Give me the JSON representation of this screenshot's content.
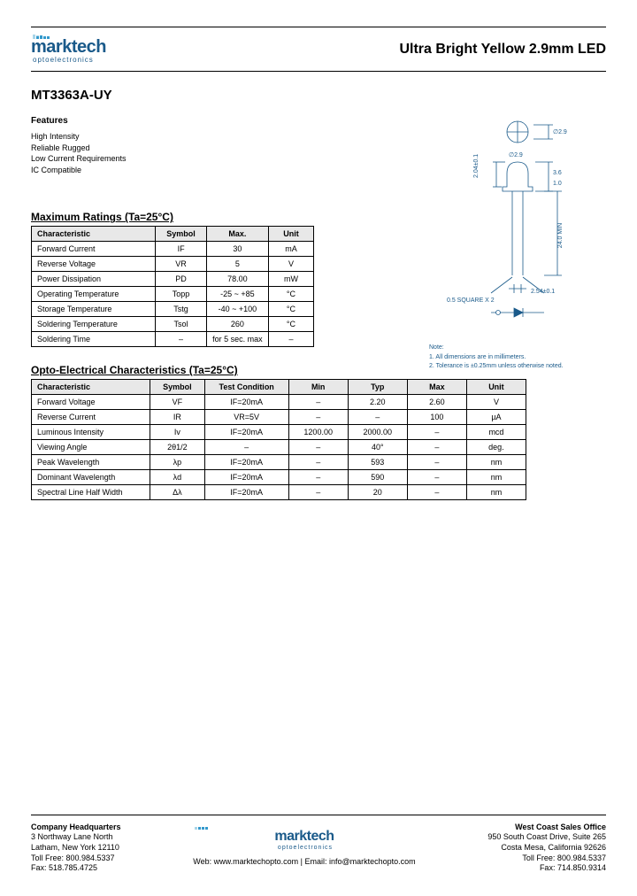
{
  "logo": {
    "name": "marktech",
    "sub": "optoelectronics"
  },
  "product_title": "Ultra Bright Yellow 2.9mm LED",
  "part_number": "MT3363A-UY",
  "features": {
    "heading": "Features",
    "items": [
      "High Intensity",
      "Reliable Rugged",
      "Low Current Requirements",
      "IC Compatible"
    ]
  },
  "ratings": {
    "heading": "Maximum Ratings (Ta=25°C)",
    "columns": [
      "Characteristic",
      "Symbol",
      "Max.",
      "Unit"
    ],
    "col_widths": [
      "44%",
      "18%",
      "22%",
      "16%"
    ],
    "header_bg": "#e8e8e8",
    "rows": [
      [
        "Forward Current",
        "IF",
        "30",
        "mA"
      ],
      [
        "Reverse Voltage",
        "VR",
        "5",
        "V"
      ],
      [
        "Power Dissipation",
        "PD",
        "78.00",
        "mW"
      ],
      [
        "Operating Temperature",
        "Topp",
        "-25 ~ +85",
        "°C"
      ],
      [
        "Storage Temperature",
        "Tstg",
        "-40 ~ +100",
        "°C"
      ],
      [
        "Soldering Temperature",
        "Tsol",
        "260",
        "°C"
      ],
      [
        "Soldering Time",
        "–",
        "for 5 sec. max",
        "–"
      ]
    ]
  },
  "opto": {
    "heading": "Opto-Electrical Characteristics (Ta=25°C)",
    "columns": [
      "Characteristic",
      "Symbol",
      "Test Condition",
      "Min",
      "Typ",
      "Max",
      "Unit"
    ],
    "col_widths": [
      "24%",
      "11%",
      "17%",
      "12%",
      "12%",
      "12%",
      "12%"
    ],
    "header_bg": "#e8e8e8",
    "rows": [
      [
        "Forward Voltage",
        "VF",
        "IF=20mA",
        "–",
        "2.20",
        "2.60",
        "V"
      ],
      [
        "Reverse Current",
        "IR",
        "VR=5V",
        "–",
        "–",
        "100",
        "µA"
      ],
      [
        "Luminous Intensity",
        "Iv",
        "IF=20mA",
        "1200.00",
        "2000.00",
        "–",
        "mcd"
      ],
      [
        "Viewing Angle",
        "2θ1/2",
        "–",
        "–",
        "40°",
        "–",
        "deg."
      ],
      [
        "Peak Wavelength",
        "λp",
        "IF=20mA",
        "–",
        "593",
        "–",
        "nm"
      ],
      [
        "Dominant Wavelength",
        "λd",
        "IF=20mA",
        "–",
        "590",
        "–",
        "nm"
      ],
      [
        "Spectral Line Half Width",
        "Δλ",
        "IF=20mA",
        "–",
        "20",
        "–",
        "nm"
      ]
    ]
  },
  "diagram": {
    "top_dia": "∅2.9",
    "dim_h1": "2.04±0.1",
    "dim_top": "1.0",
    "dim_lead": "24.0 MIN",
    "dim_pitch": "2.54±0.1",
    "dim_sq": "0.5 SQUARE X 2",
    "notes_h": "Note:",
    "notes": [
      "1. All dimensions are in millimeters.",
      "2. Tolerance is ±0.25mm unless otherwise noted."
    ],
    "stroke": "#1a5a8a"
  },
  "footer": {
    "left": {
      "h": "Company Headquarters",
      "l1": "3 Northway Lane North",
      "l2": "Latham, New York 12110",
      "l3": "Toll Free: 800.984.5337",
      "l4": "Fax: 518.785.4725"
    },
    "center": {
      "web": "Web: www.marktechopto.com | Email: info@marktechopto.com"
    },
    "right": {
      "h": "West Coast Sales Office",
      "l1": "950 South Coast Drive, Suite 265",
      "l2": "Costa Mesa, California 92626",
      "l3": "Toll Free: 800.984.5337",
      "l4": "Fax: 714.850.9314"
    }
  }
}
